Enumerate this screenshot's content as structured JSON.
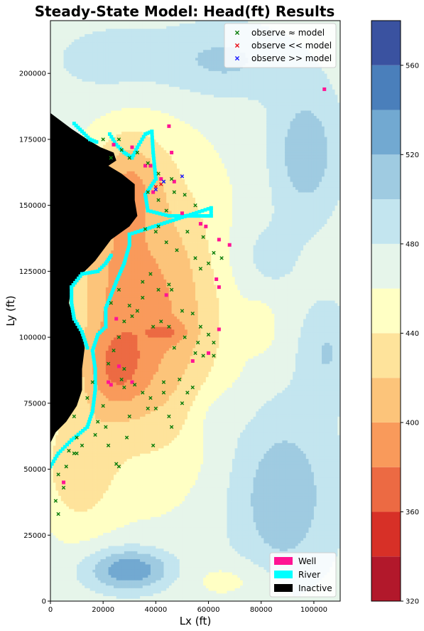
{
  "chart_data": {
    "type": "heatmap",
    "title": "Steady-State Model: Head(ft) Results",
    "xlabel": "Lx (ft)",
    "ylabel": "Ly (ft)",
    "xlim": [
      0,
      110000
    ],
    "ylim": [
      0,
      220000
    ],
    "x_ticks": [
      "0",
      "20000",
      "40000",
      "60000",
      "80000",
      "100000"
    ],
    "y_ticks": [
      "0",
      "25000",
      "50000",
      "75000",
      "100000",
      "125000",
      "150000",
      "175000",
      "200000"
    ],
    "colorbar": {
      "range": [
        320,
        580
      ],
      "ticks": [
        "320",
        "360",
        "400",
        "440",
        "480",
        "520",
        "560"
      ],
      "levels": [
        320,
        340,
        360,
        380,
        400,
        420,
        440,
        460,
        480,
        500,
        520,
        540,
        560,
        580
      ],
      "colors": [
        "#b2182b",
        "#d73027",
        "#ec6a43",
        "#f99a5b",
        "#fcc47a",
        "#fee39b",
        "#ffffc4",
        "#e6f5ea",
        "#c3e5ef",
        "#9fcbe1",
        "#72a9d1",
        "#4a7fbb",
        "#3a52a0"
      ]
    },
    "legend_markers": {
      "placement": "top-right",
      "entries": [
        {
          "label": "observe ≈ model",
          "color": "#0a7d0a"
        },
        {
          "label": "observe << model",
          "color": "#e8101a"
        },
        {
          "label": "observe >> model",
          "color": "#1a1aff"
        }
      ]
    },
    "legend_cells": {
      "placement": "bottom-right",
      "entries": [
        {
          "label": "Well",
          "color": "#ff1493"
        },
        {
          "label": "River",
          "color": "#00ffff"
        },
        {
          "label": "Inactive",
          "color": "#000000"
        }
      ]
    },
    "head_field": {
      "background": 470,
      "features": [
        {
          "x": 38000,
          "y": 110000,
          "rx": 28000,
          "ry": 55000,
          "dv": -75
        },
        {
          "x": 24000,
          "y": 88000,
          "rx": 12000,
          "ry": 16000,
          "dv": -45
        },
        {
          "x": 30000,
          "y": 160000,
          "rx": 13000,
          "ry": 18000,
          "dv": -40
        },
        {
          "x": 10000,
          "y": 50000,
          "rx": 14000,
          "ry": 24000,
          "dv": -40
        },
        {
          "x": 20000,
          "y": 130000,
          "rx": 14000,
          "ry": 30000,
          "dv": -20
        },
        {
          "x": 45000,
          "y": 102000,
          "rx": 8000,
          "ry": 4000,
          "dv": -25
        },
        {
          "x": 30000,
          "y": 12000,
          "rx": 16000,
          "ry": 8000,
          "dv": 70
        },
        {
          "x": 88000,
          "y": 40000,
          "rx": 20000,
          "ry": 34000,
          "dv": 45
        },
        {
          "x": 97000,
          "y": 170000,
          "rx": 13000,
          "ry": 24000,
          "dv": 45
        },
        {
          "x": 65000,
          "y": 205000,
          "rx": 26000,
          "ry": 14000,
          "dv": 35
        },
        {
          "x": 105000,
          "y": 95000,
          "rx": 10000,
          "ry": 18000,
          "dv": 30
        },
        {
          "x": 80000,
          "y": 130000,
          "rx": 15000,
          "ry": 16000,
          "dv": 20
        },
        {
          "x": 22000,
          "y": 205000,
          "rx": 22000,
          "ry": 14000,
          "dv": 20
        },
        {
          "x": 62000,
          "y": 70000,
          "rx": 9000,
          "ry": 12000,
          "dv": 15
        },
        {
          "x": 80000,
          "y": 105000,
          "rx": 6000,
          "ry": 10000,
          "dv": -20
        },
        {
          "x": 70000,
          "y": 8000,
          "rx": 18000,
          "ry": 8000,
          "dv": -20
        }
      ]
    },
    "inactive_boundary": [
      [
        0,
        185000
      ],
      [
        8000,
        179000
      ],
      [
        14000,
        175000
      ],
      [
        19000,
        172000
      ],
      [
        24000,
        170000
      ],
      [
        25000,
        167000
      ],
      [
        22000,
        165000
      ],
      [
        27000,
        162000
      ],
      [
        32000,
        158000
      ],
      [
        32000,
        152000
      ],
      [
        33000,
        146000
      ],
      [
        30000,
        142000
      ],
      [
        23000,
        137000
      ],
      [
        17000,
        129000
      ],
      [
        12000,
        124000
      ],
      [
        8000,
        119000
      ],
      [
        7000,
        113000
      ],
      [
        9000,
        107000
      ],
      [
        12000,
        102000
      ],
      [
        13000,
        96000
      ],
      [
        12000,
        88000
      ],
      [
        12000,
        80000
      ],
      [
        10000,
        74000
      ],
      [
        6000,
        68000
      ],
      [
        2000,
        64000
      ],
      [
        0,
        60000
      ]
    ],
    "river": [
      [
        22500,
        177000
      ],
      [
        25000,
        173000
      ],
      [
        28000,
        170000
      ],
      [
        31000,
        168000
      ],
      [
        33000,
        172000
      ],
      [
        36000,
        177000
      ],
      [
        38500,
        178000
      ],
      [
        39000,
        170000
      ],
      [
        40000,
        160000
      ],
      [
        36000,
        154000
      ],
      [
        37000,
        148000
      ],
      [
        45000,
        146000
      ],
      [
        55000,
        146000
      ],
      [
        61000,
        146000
      ],
      [
        61000,
        149000
      ],
      [
        30000,
        139000
      ],
      [
        30000,
        135000
      ],
      [
        28000,
        128000
      ],
      [
        25000,
        121000
      ],
      [
        23000,
        116000
      ],
      [
        21000,
        111000
      ],
      [
        21000,
        104000
      ],
      [
        18000,
        101000
      ],
      [
        16000,
        95000
      ],
      [
        17000,
        88000
      ],
      [
        17000,
        80000
      ],
      [
        16000,
        72000
      ],
      [
        14000,
        66000
      ],
      [
        8000,
        61000
      ],
      [
        3000,
        56000
      ],
      [
        0,
        51000
      ]
    ],
    "river_upper_nw": [
      [
        9000,
        181000
      ],
      [
        12000,
        178000
      ],
      [
        15000,
        175000
      ],
      [
        17500,
        174000
      ]
    ],
    "river_left_arc": [
      [
        23000,
        131000
      ],
      [
        21000,
        128000
      ],
      [
        18000,
        125000
      ],
      [
        12000,
        124000
      ],
      [
        8000,
        119000
      ],
      [
        8000,
        113000
      ],
      [
        9000,
        107000
      ],
      [
        12000,
        102000
      ],
      [
        14000,
        96000
      ]
    ],
    "wells": [
      [
        104000,
        194000
      ],
      [
        31000,
        172000
      ],
      [
        24000,
        173000
      ],
      [
        36000,
        165000
      ],
      [
        38000,
        165000
      ],
      [
        46000,
        170000
      ],
      [
        39000,
        155000
      ],
      [
        42000,
        160000
      ],
      [
        47000,
        159000
      ],
      [
        50000,
        147000
      ],
      [
        57000,
        143000
      ],
      [
        59000,
        142000
      ],
      [
        64000,
        137000
      ],
      [
        68000,
        135000
      ],
      [
        63000,
        122000
      ],
      [
        64000,
        119000
      ],
      [
        44000,
        116000
      ],
      [
        64000,
        103000
      ],
      [
        60000,
        94000
      ],
      [
        54000,
        91000
      ],
      [
        26000,
        89000
      ],
      [
        22000,
        83000
      ],
      [
        23000,
        82000
      ],
      [
        31000,
        83000
      ],
      [
        25000,
        107000
      ],
      [
        45000,
        180000
      ],
      [
        5000,
        45000
      ]
    ],
    "obs_ok": [
      [
        20000,
        175000
      ],
      [
        23000,
        168000
      ],
      [
        26000,
        175000
      ],
      [
        27000,
        171000
      ],
      [
        30000,
        168000
      ],
      [
        33000,
        170000
      ],
      [
        37000,
        166000
      ],
      [
        41000,
        162000
      ],
      [
        43000,
        159000
      ],
      [
        46000,
        160000
      ],
      [
        37000,
        155000
      ],
      [
        41000,
        152000
      ],
      [
        44000,
        148000
      ],
      [
        47000,
        155000
      ],
      [
        51000,
        154000
      ],
      [
        55000,
        150000
      ],
      [
        36000,
        141000
      ],
      [
        40000,
        140000
      ],
      [
        44000,
        136000
      ],
      [
        48000,
        133000
      ],
      [
        41000,
        142000
      ],
      [
        52000,
        140000
      ],
      [
        58000,
        138000
      ],
      [
        62000,
        132000
      ],
      [
        65000,
        130000
      ],
      [
        57000,
        126000
      ],
      [
        55000,
        130000
      ],
      [
        60000,
        128000
      ],
      [
        35000,
        121000
      ],
      [
        38000,
        124000
      ],
      [
        45000,
        120000
      ],
      [
        46000,
        118000
      ],
      [
        41000,
        118000
      ],
      [
        35000,
        115000
      ],
      [
        33000,
        110000
      ],
      [
        31000,
        108000
      ],
      [
        28000,
        106000
      ],
      [
        23000,
        113000
      ],
      [
        26000,
        118000
      ],
      [
        30000,
        112000
      ],
      [
        39000,
        104000
      ],
      [
        42000,
        106000
      ],
      [
        45000,
        104000
      ],
      [
        50000,
        110000
      ],
      [
        54000,
        109000
      ],
      [
        57000,
        104000
      ],
      [
        60000,
        101000
      ],
      [
        62000,
        98000
      ],
      [
        56000,
        98000
      ],
      [
        51000,
        100000
      ],
      [
        47000,
        96000
      ],
      [
        55000,
        94000
      ],
      [
        58000,
        93000
      ],
      [
        62000,
        93000
      ],
      [
        26000,
        100000
      ],
      [
        24000,
        95000
      ],
      [
        22000,
        90000
      ],
      [
        28000,
        88000
      ],
      [
        27000,
        84000
      ],
      [
        28000,
        81000
      ],
      [
        32000,
        82000
      ],
      [
        35000,
        79000
      ],
      [
        43000,
        83000
      ],
      [
        43000,
        79000
      ],
      [
        40000,
        73000
      ],
      [
        45000,
        70000
      ],
      [
        50000,
        75000
      ],
      [
        52000,
        79000
      ],
      [
        54000,
        81000
      ],
      [
        49000,
        84000
      ],
      [
        38000,
        77000
      ],
      [
        37000,
        73000
      ],
      [
        30000,
        70000
      ],
      [
        20000,
        74000
      ],
      [
        18000,
        68000
      ],
      [
        17000,
        63000
      ],
      [
        10000,
        62000
      ],
      [
        12000,
        59000
      ],
      [
        10000,
        56000
      ],
      [
        7000,
        57000
      ],
      [
        9000,
        56000
      ],
      [
        6000,
        51000
      ],
      [
        3000,
        48000
      ],
      [
        5000,
        43000
      ],
      [
        2000,
        38000
      ],
      [
        3000,
        33000
      ],
      [
        21000,
        66000
      ],
      [
        22000,
        59000
      ],
      [
        29000,
        62000
      ],
      [
        39000,
        59000
      ],
      [
        46000,
        66000
      ],
      [
        25000,
        52000
      ],
      [
        26000,
        51000
      ],
      [
        9000,
        70000
      ],
      [
        14000,
        77000
      ],
      [
        16000,
        83000
      ]
    ],
    "obs_low": [
      [
        40000,
        157000
      ],
      [
        42000,
        158000
      ]
    ],
    "obs_high": [
      [
        43000,
        159000
      ],
      [
        50000,
        161000
      ],
      [
        40000,
        156000
      ]
    ]
  }
}
